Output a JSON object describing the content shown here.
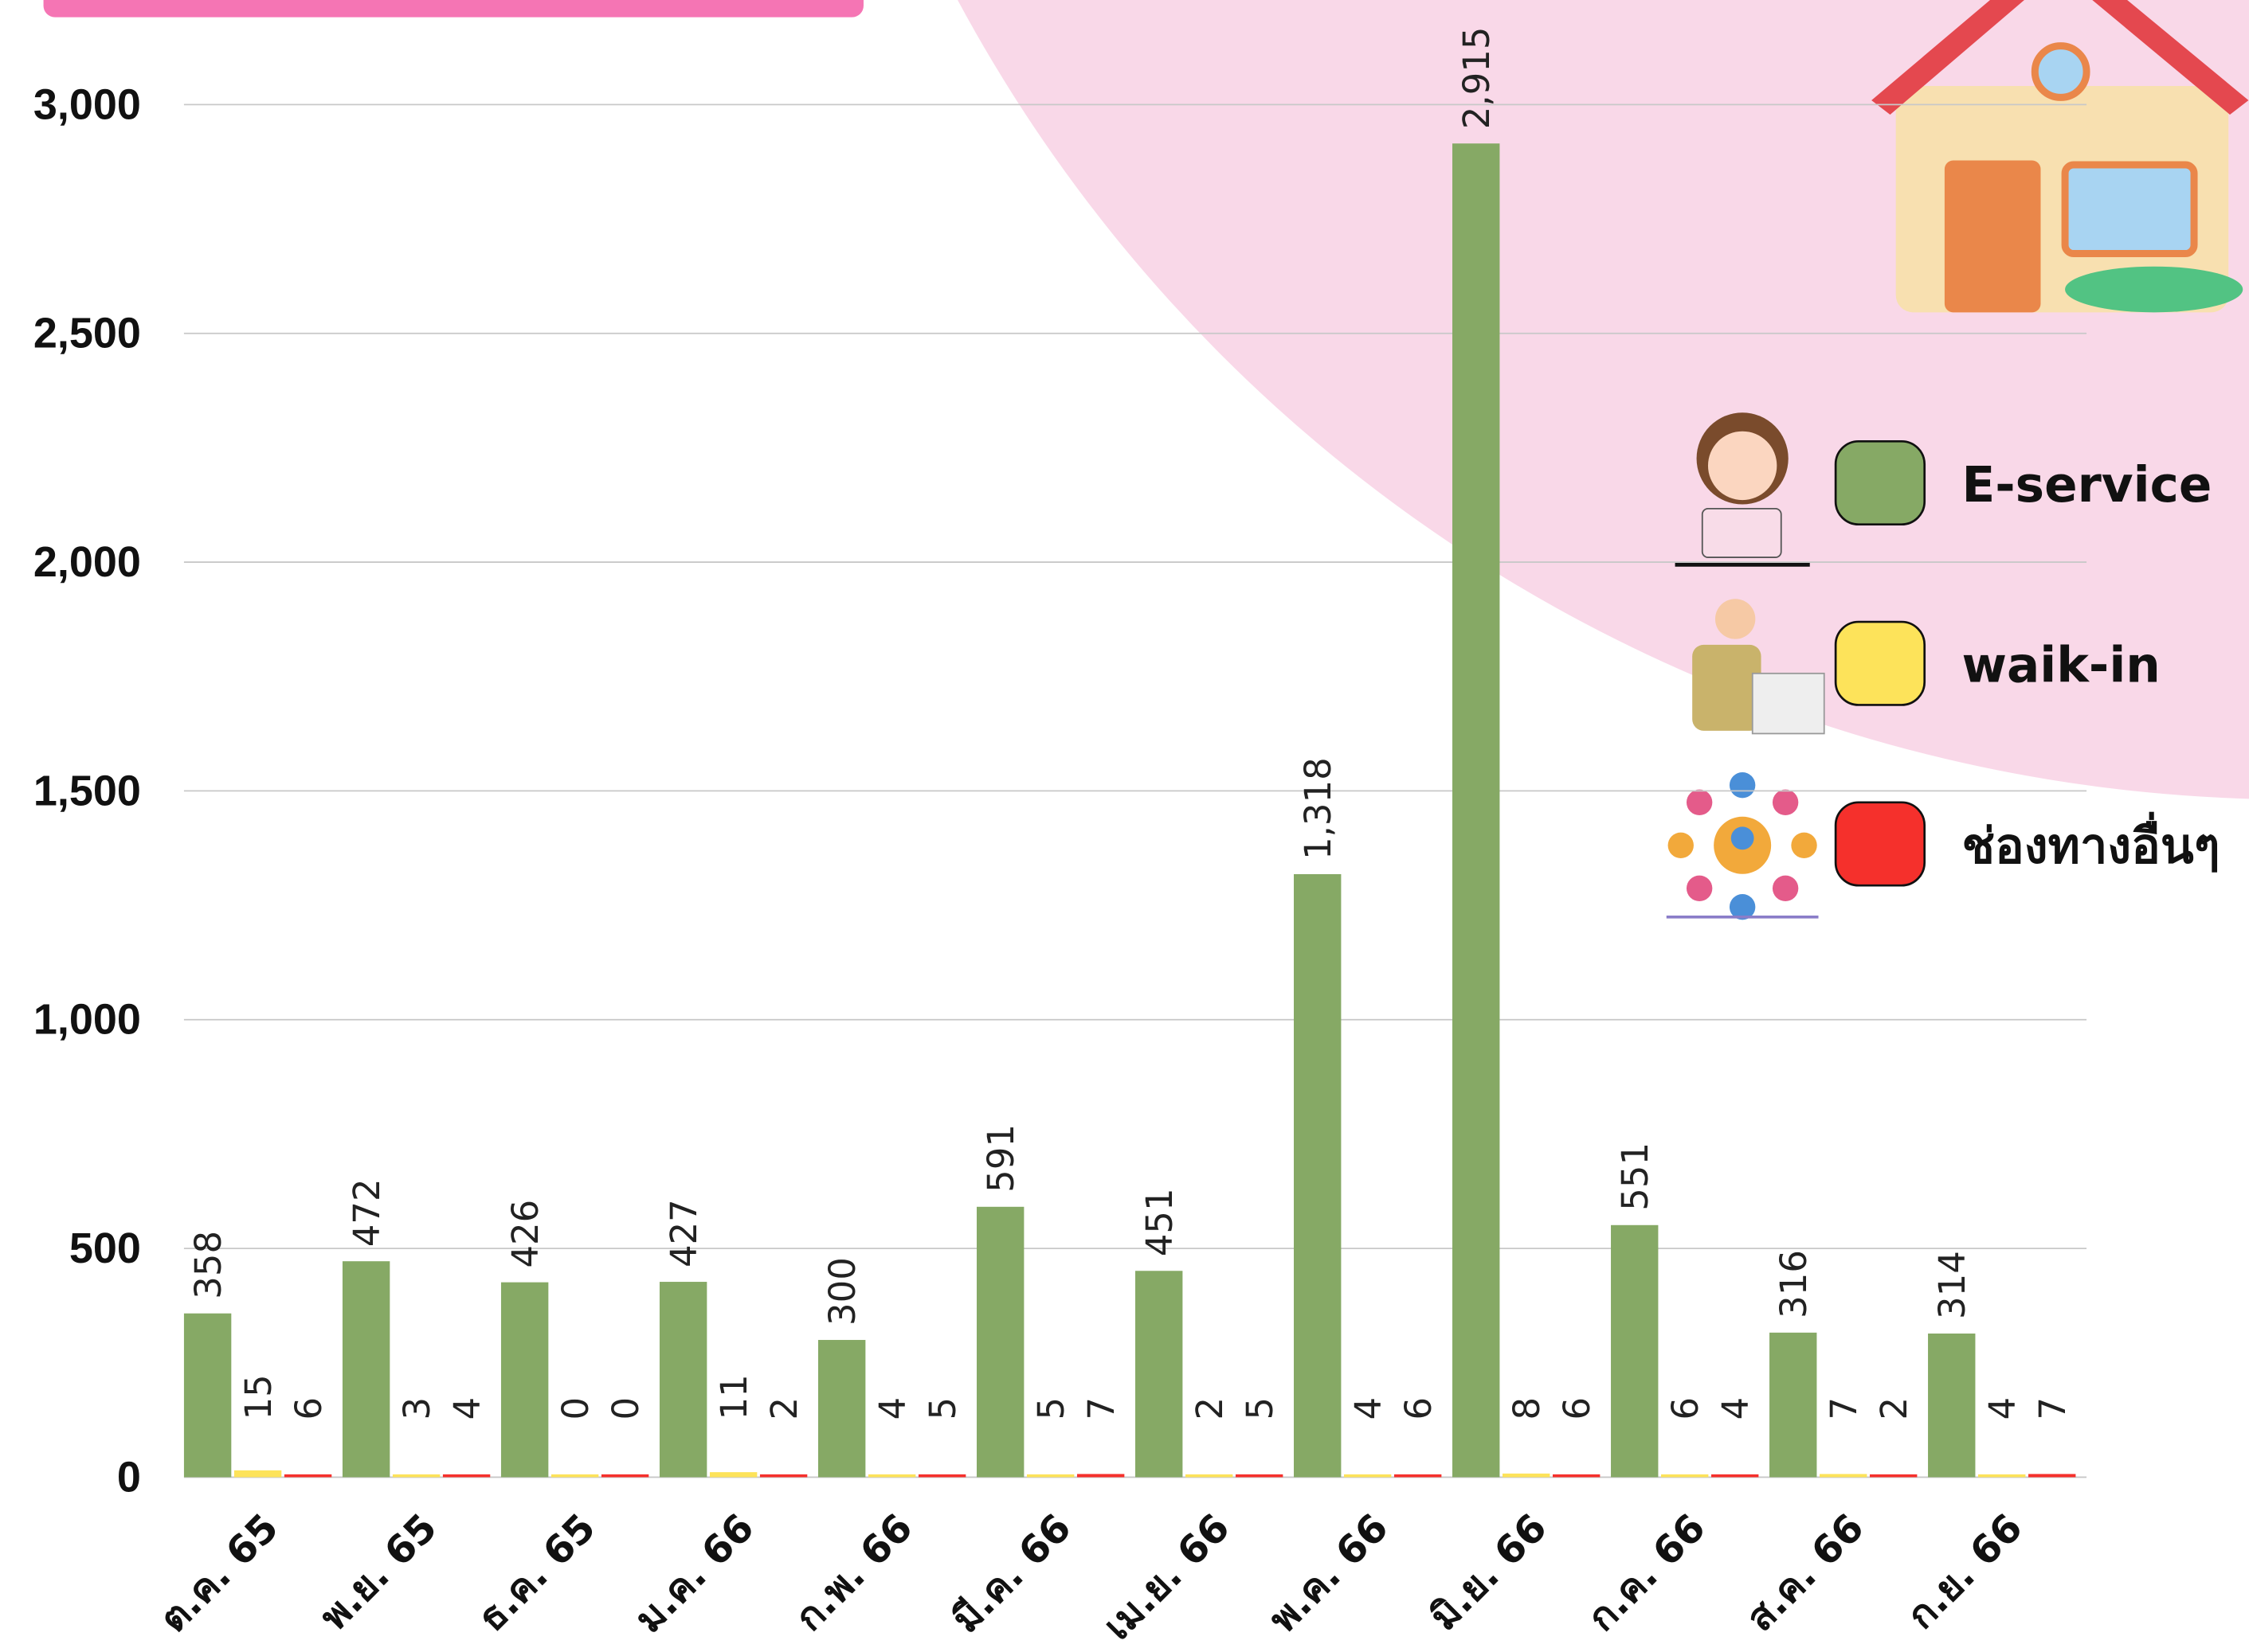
{
  "chart_data": {
    "type": "bar",
    "categories": [
      "ต.ค. 65",
      "พ.ย. 65",
      "ธ.ค. 65",
      "ม.ค. 66",
      "ก.พ. 66",
      "มี.ค. 66",
      "เม.ย. 66",
      "พ.ค. 66",
      "มิ.ย. 66",
      "ก.ค. 66",
      "ส.ค. 66",
      "ก.ย. 66"
    ],
    "series": [
      {
        "name": "E-service",
        "color": "#86a965",
        "values": [
          358,
          472,
          426,
          427,
          300,
          591,
          451,
          1318,
          2915,
          551,
          316,
          314
        ],
        "value_labels": [
          "358",
          "472",
          "426",
          "427",
          "300",
          "591",
          "451",
          "1,318",
          "2,915",
          "551",
          "316",
          "314"
        ]
      },
      {
        "name": "waik-in",
        "color": "#fde35a",
        "values": [
          15,
          3,
          0,
          11,
          4,
          5,
          2,
          4,
          8,
          6,
          7,
          4
        ]
      },
      {
        "name": "ช่องทางอื่นๆ",
        "color": "#f5302c",
        "values": [
          6,
          4,
          0,
          2,
          5,
          7,
          5,
          6,
          6,
          4,
          2,
          7
        ]
      }
    ],
    "ylim": [
      0,
      3000
    ],
    "yticks": [
      0,
      500,
      {
        "value": 1000,
        "label": "1,000"
      },
      {
        "value": 1500,
        "label": "1,500"
      },
      {
        "value": 2000,
        "label": "2,000"
      },
      {
        "value": 2500,
        "label": "2,500"
      },
      {
        "value": 3000,
        "label": "3,000"
      }
    ],
    "grid": true,
    "legend": "upper right"
  }
}
